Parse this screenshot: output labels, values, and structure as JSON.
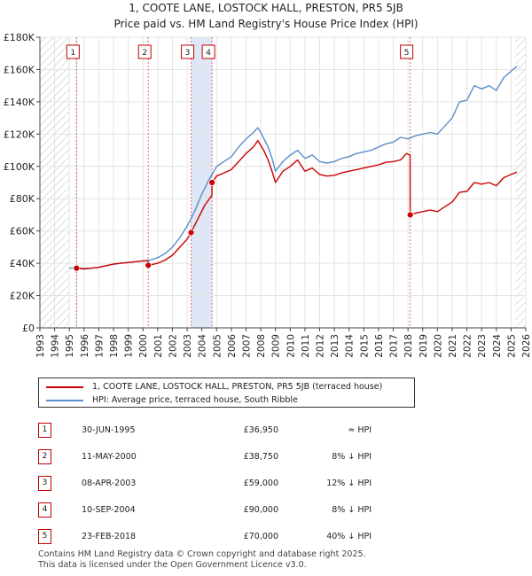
{
  "chart_data": {
    "type": "line",
    "title": "1, COOTE LANE, LOSTOCK HALL, PRESTON, PR5 5JB",
    "subtitle": "Price paid vs. HM Land Registry's House Price Index (HPI)",
    "xlim": [
      1993,
      2026
    ],
    "ylim": [
      0,
      180000
    ],
    "x_ticks": [
      "1993",
      "1994",
      "1995",
      "1996",
      "1997",
      "1998",
      "1999",
      "2000",
      "2001",
      "2002",
      "2003",
      "2004",
      "2005",
      "2006",
      "2007",
      "2008",
      "2009",
      "2010",
      "2011",
      "2012",
      "2013",
      "2014",
      "2015",
      "2016",
      "2017",
      "2018",
      "2019",
      "2020",
      "2021",
      "2022",
      "2023",
      "2024",
      "2025",
      "2026"
    ],
    "y_ticks": [
      {
        "value": 0,
        "label": "£0"
      },
      {
        "value": 20000,
        "label": "£20K"
      },
      {
        "value": 40000,
        "label": "£40K"
      },
      {
        "value": 60000,
        "label": "£60K"
      },
      {
        "value": 80000,
        "label": "£80K"
      },
      {
        "value": 100000,
        "label": "£100K"
      },
      {
        "value": 120000,
        "label": "£120K"
      },
      {
        "value": 140000,
        "label": "£140K"
      },
      {
        "value": 160000,
        "label": "£160K"
      },
      {
        "value": 180000,
        "label": "£180K"
      }
    ],
    "hatch_regions": [
      [
        1993,
        1995.0
      ],
      [
        2025.3,
        2026
      ]
    ],
    "sales": [
      {
        "n": "1",
        "t": 1995.49,
        "price": 36950
      },
      {
        "n": "2",
        "t": 2000.36,
        "price": 38750
      },
      {
        "n": "3",
        "t": 2003.27,
        "price": 59000
      },
      {
        "n": "4",
        "t": 2004.69,
        "price": 90000
      },
      {
        "n": "5",
        "t": 2018.15,
        "price": 70000
      }
    ],
    "series": [
      {
        "name": "1, COOTE LANE, LOSTOCK HALL, PRESTON, PR5 5JB (terraced house)",
        "color": "#cc0000",
        "points": [
          [
            1995.49,
            36950
          ],
          [
            1996,
            36500
          ],
          [
            1996.5,
            37000
          ],
          [
            1997,
            37500
          ],
          [
            1997.5,
            38500
          ],
          [
            1998,
            39500
          ],
          [
            1998.5,
            40000
          ],
          [
            1999,
            40500
          ],
          [
            1999.5,
            41000
          ],
          [
            2000,
            41500
          ],
          [
            2000.35,
            41500
          ],
          [
            2000.36,
            38750
          ],
          [
            2001,
            40000
          ],
          [
            2001.5,
            42000
          ],
          [
            2002,
            45000
          ],
          [
            2002.5,
            50000
          ],
          [
            2003,
            55000
          ],
          [
            2003.27,
            59000
          ],
          [
            2003.7,
            67000
          ],
          [
            2004.2,
            76000
          ],
          [
            2004.68,
            82000
          ],
          [
            2004.69,
            90000
          ],
          [
            2005,
            94000
          ],
          [
            2005.5,
            96000
          ],
          [
            2006,
            98000
          ],
          [
            2006.5,
            103000
          ],
          [
            2007,
            108000
          ],
          [
            2007.5,
            112000
          ],
          [
            2007.8,
            116000
          ],
          [
            2008.2,
            110000
          ],
          [
            2008.5,
            104000
          ],
          [
            2008.8,
            96000
          ],
          [
            2009,
            90000
          ],
          [
            2009.5,
            97000
          ],
          [
            2010,
            100000
          ],
          [
            2010.5,
            104000
          ],
          [
            2011,
            97000
          ],
          [
            2011.5,
            99000
          ],
          [
            2012,
            95000
          ],
          [
            2012.5,
            94000
          ],
          [
            2013,
            94500
          ],
          [
            2013.5,
            96000
          ],
          [
            2014,
            97000
          ],
          [
            2014.5,
            98000
          ],
          [
            2015,
            99000
          ],
          [
            2015.5,
            100000
          ],
          [
            2016,
            101000
          ],
          [
            2016.5,
            102500
          ],
          [
            2017,
            103000
          ],
          [
            2017.5,
            104000
          ],
          [
            2017.9,
            108000
          ],
          [
            2018.14,
            107000
          ],
          [
            2018.15,
            70000
          ],
          [
            2018.5,
            71000
          ],
          [
            2019,
            72000
          ],
          [
            2019.5,
            73000
          ],
          [
            2020,
            72000
          ],
          [
            2020.5,
            75000
          ],
          [
            2021,
            78000
          ],
          [
            2021.5,
            84000
          ],
          [
            2022,
            84500
          ],
          [
            2022.5,
            90000
          ],
          [
            2023,
            89000
          ],
          [
            2023.5,
            90000
          ],
          [
            2024,
            88000
          ],
          [
            2024.5,
            93000
          ],
          [
            2025,
            95000
          ],
          [
            2025.4,
            96500
          ]
        ]
      },
      {
        "name": "HPI: Average price, terraced house, South Ribble",
        "color": "#5b8ec8",
        "points": [
          [
            1995,
            37000
          ],
          [
            1995.5,
            37200
          ],
          [
            1996,
            36800
          ],
          [
            1996.5,
            37000
          ],
          [
            1997,
            37500
          ],
          [
            1997.5,
            38500
          ],
          [
            1998,
            39500
          ],
          [
            1998.5,
            40000
          ],
          [
            1999,
            40500
          ],
          [
            1999.5,
            41000
          ],
          [
            2000,
            41500
          ],
          [
            2000.5,
            42000
          ],
          [
            2001,
            43500
          ],
          [
            2001.5,
            46000
          ],
          [
            2002,
            50000
          ],
          [
            2002.5,
            56000
          ],
          [
            2003,
            63000
          ],
          [
            2003.5,
            72000
          ],
          [
            2004,
            83000
          ],
          [
            2004.5,
            92000
          ],
          [
            2005,
            100000
          ],
          [
            2005.5,
            103000
          ],
          [
            2006,
            106000
          ],
          [
            2006.5,
            112000
          ],
          [
            2007,
            117000
          ],
          [
            2007.5,
            121000
          ],
          [
            2007.8,
            124000
          ],
          [
            2008,
            121000
          ],
          [
            2008.5,
            112000
          ],
          [
            2008.8,
            104000
          ],
          [
            2009,
            97000
          ],
          [
            2009.5,
            103000
          ],
          [
            2010,
            107000
          ],
          [
            2010.5,
            110000
          ],
          [
            2011,
            105000
          ],
          [
            2011.5,
            107000
          ],
          [
            2012,
            103000
          ],
          [
            2012.5,
            102000
          ],
          [
            2013,
            103000
          ],
          [
            2013.5,
            105000
          ],
          [
            2014,
            106000
          ],
          [
            2014.5,
            108000
          ],
          [
            2015,
            109000
          ],
          [
            2015.5,
            110000
          ],
          [
            2016,
            112000
          ],
          [
            2016.5,
            114000
          ],
          [
            2017,
            115000
          ],
          [
            2017.5,
            118000
          ],
          [
            2018,
            117000
          ],
          [
            2018.5,
            119000
          ],
          [
            2019,
            120000
          ],
          [
            2019.5,
            121000
          ],
          [
            2020,
            120000
          ],
          [
            2020.5,
            125000
          ],
          [
            2021,
            130000
          ],
          [
            2021.5,
            140000
          ],
          [
            2022,
            141000
          ],
          [
            2022.5,
            150000
          ],
          [
            2023,
            148000
          ],
          [
            2023.5,
            150000
          ],
          [
            2024,
            147000
          ],
          [
            2024.5,
            155000
          ],
          [
            2025,
            159000
          ],
          [
            2025.4,
            162000
          ]
        ]
      }
    ]
  },
  "legend": {
    "red_label": "1, COOTE LANE, LOSTOCK HALL, PRESTON, PR5 5JB (terraced house)",
    "blue_label": "HPI: Average price, terraced house, South Ribble"
  },
  "table": [
    {
      "n": "1",
      "date": "30-JUN-1995",
      "price": "£36,950",
      "hpi": "≈ HPI"
    },
    {
      "n": "2",
      "date": "11-MAY-2000",
      "price": "£38,750",
      "hpi": "8% ↓ HPI"
    },
    {
      "n": "3",
      "date": "08-APR-2003",
      "price": "£59,000",
      "hpi": "12% ↓ HPI"
    },
    {
      "n": "4",
      "date": "10-SEP-2004",
      "price": "£90,000",
      "hpi": "8% ↓ HPI"
    },
    {
      "n": "5",
      "date": "23-FEB-2018",
      "price": "£70,000",
      "hpi": "40% ↓ HPI"
    }
  ],
  "footer": {
    "line1": "Contains HM Land Registry data © Crown copyright and database right 2025.",
    "line2": "This data is licensed under the Open Government Licence v3.0."
  }
}
